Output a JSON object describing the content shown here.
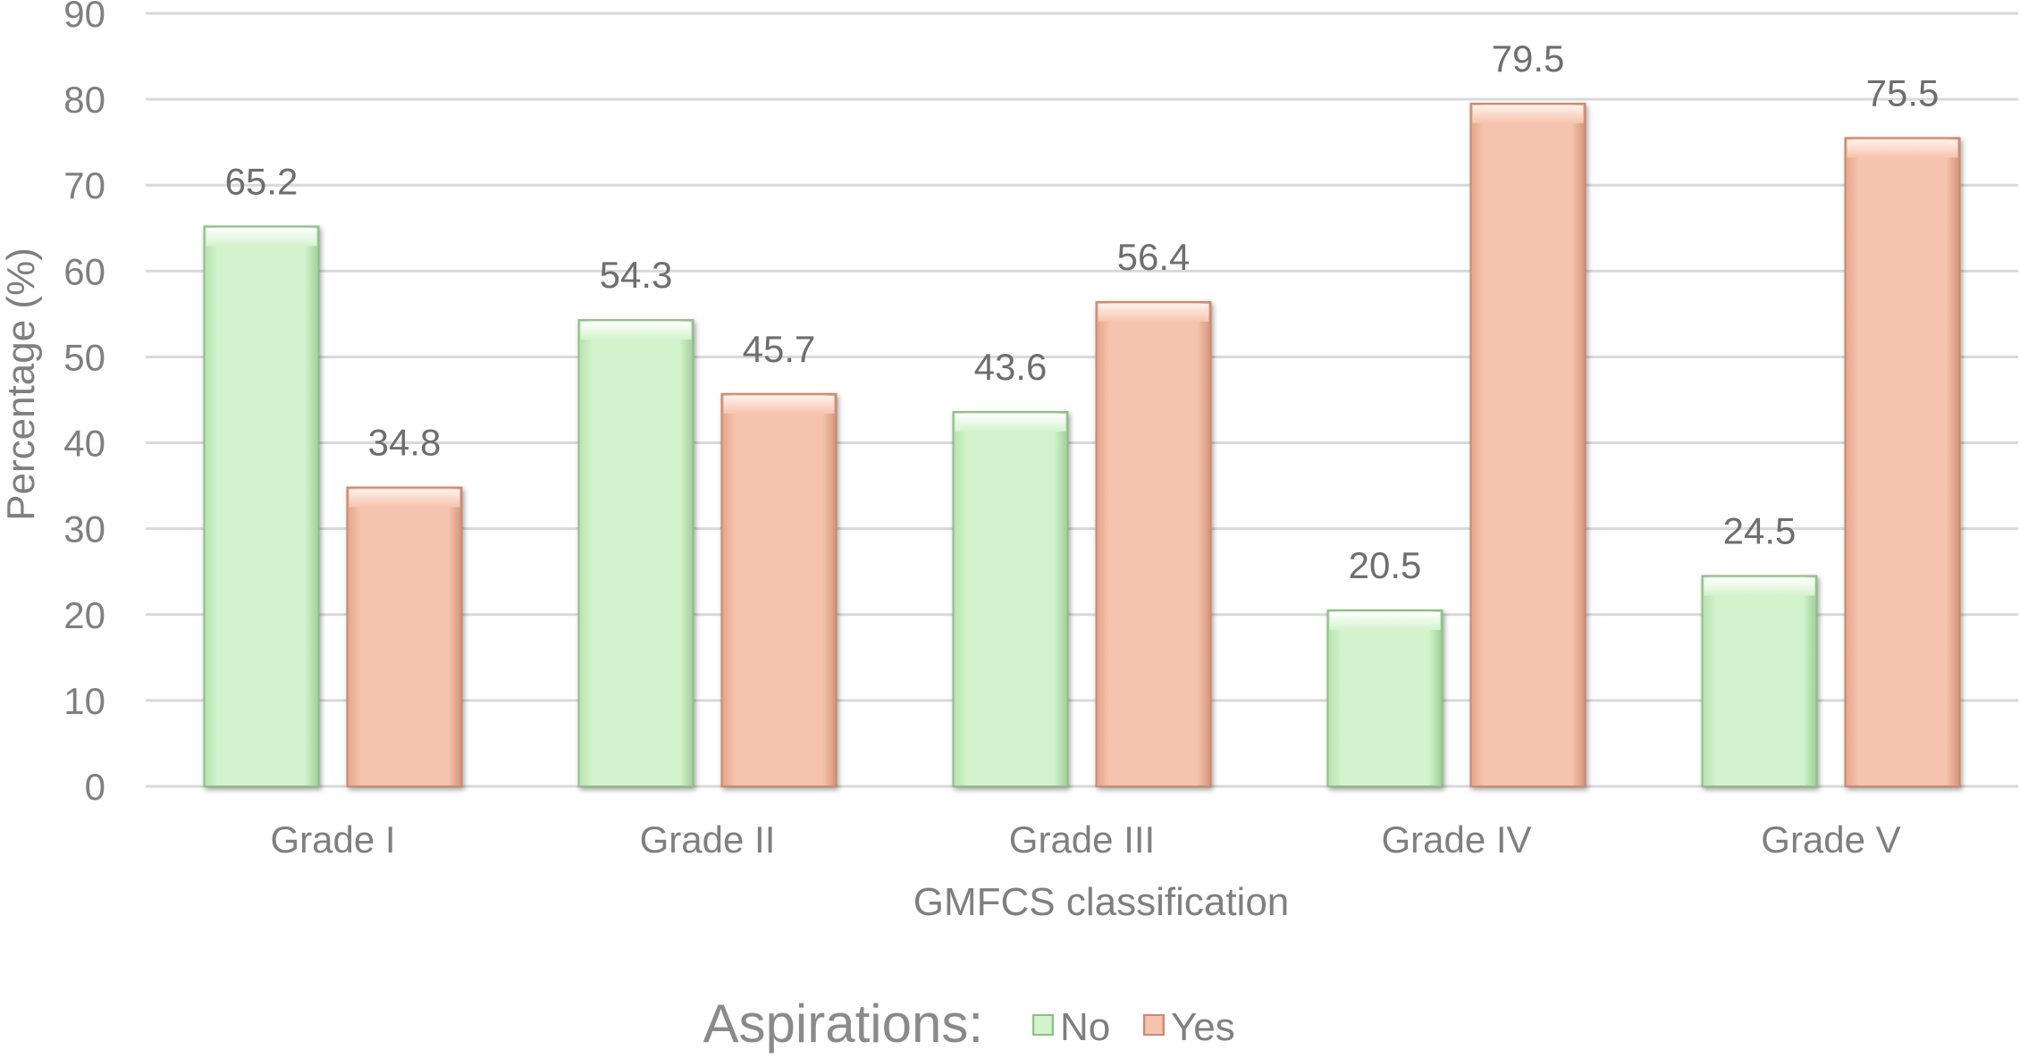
{
  "chart_data": {
    "type": "bar",
    "xlabel": "GMFCS classification",
    "ylabel": "Percentage (%)",
    "ylim": [
      0,
      90
    ],
    "yticks": [
      0,
      10,
      20,
      30,
      40,
      50,
      60,
      70,
      80,
      90
    ],
    "grid": true,
    "categories": [
      "Grade I",
      "Grade II",
      "Grade III",
      "Grade IV",
      "Grade V"
    ],
    "series": [
      {
        "name": "No",
        "color": "#c6efc0",
        "values": [
          65.2,
          54.3,
          43.6,
          20.5,
          24.5
        ]
      },
      {
        "name": "Yes",
        "color": "#f2b8a0",
        "values": [
          34.8,
          45.7,
          56.4,
          79.5,
          75.5
        ]
      }
    ],
    "data_labels": [
      [
        "65.2",
        "54.3",
        "43.6",
        "20.5",
        "24.5"
      ],
      [
        "34.8",
        "45.7",
        "56.4",
        "79.5",
        "75.5"
      ]
    ],
    "legend": {
      "title": "Aspirations:",
      "placement": "bottom"
    }
  }
}
